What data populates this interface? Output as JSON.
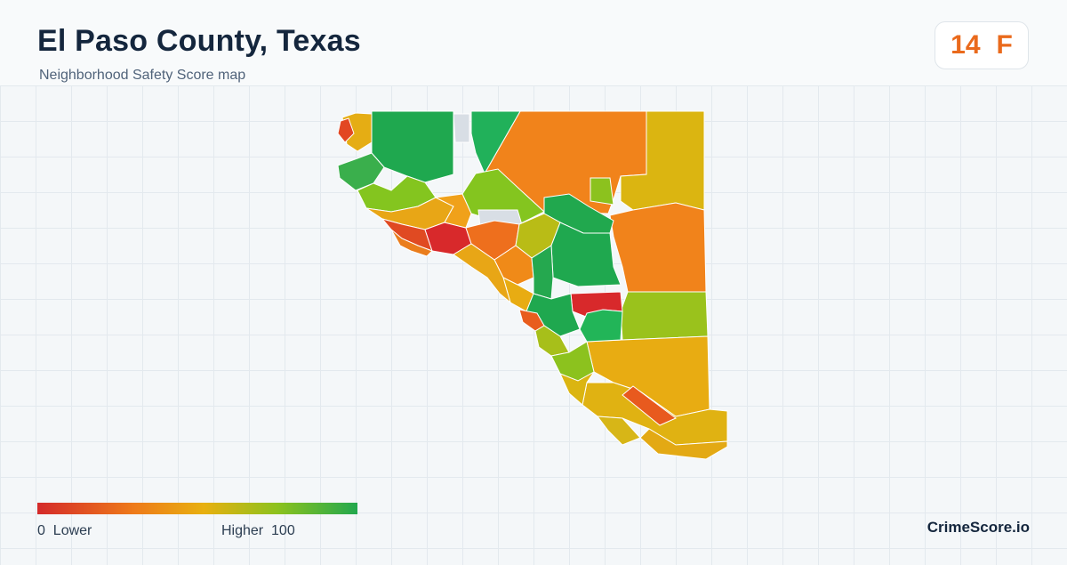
{
  "header": {
    "title": "El Paso County, Texas",
    "subtitle": "Neighborhood Safety Score map"
  },
  "score": {
    "value": "14",
    "grade": "F",
    "color": "#ea6a1c"
  },
  "legend": {
    "min_value": "0",
    "min_label": "Lower",
    "max_label": "Higher",
    "max_value": "100",
    "colors": [
      "#d42a2a",
      "#ee7a1a",
      "#e8b010",
      "#8cc21e",
      "#22a84e"
    ]
  },
  "map": {
    "region": "El Paso County",
    "no_data_color": "#d8dee5",
    "tract_colors": {
      "high": "#1fa84f",
      "mid_high": "#84c51f",
      "mid": "#e1b413",
      "mid_low": "#f1831b",
      "low": "#d8292b"
    }
  },
  "branding": {
    "site": "CrimeScore.io"
  }
}
